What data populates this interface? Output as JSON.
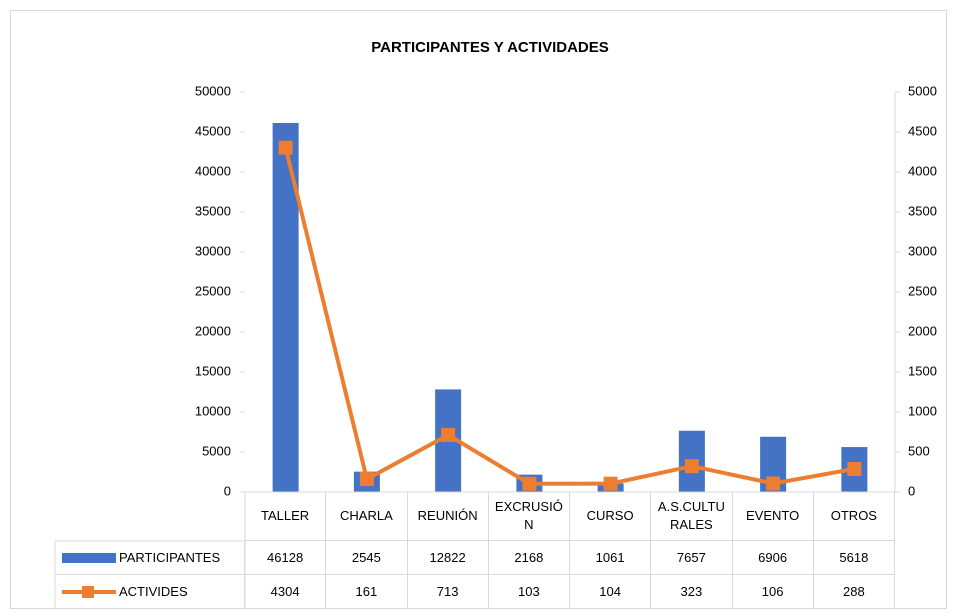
{
  "chart_data": {
    "type": "bar-line",
    "title": "PARTICIPANTES Y ACTIVIDADES",
    "categories": [
      "TALLER",
      "CHARLA",
      "REUNIÓN",
      "EXCRUSIÓN",
      "CURSO",
      "A.S.CULTURALES",
      "EVENTO",
      "OTROS"
    ],
    "series": [
      {
        "name": "PARTICIPANTES",
        "type": "bar",
        "color": "#4472c4",
        "values": [
          46128,
          2545,
          12822,
          2168,
          1061,
          7657,
          6906,
          5618
        ]
      },
      {
        "name": "ACTIVIDES",
        "type": "line",
        "axis": "y2",
        "color": "#ed7d31",
        "values": [
          4304,
          161,
          713,
          103,
          104,
          323,
          106,
          288
        ]
      }
    ],
    "ylim": [
      0,
      50000
    ],
    "yticks": [
      0,
      5000,
      10000,
      15000,
      20000,
      25000,
      30000,
      35000,
      40000,
      45000,
      50000
    ],
    "y2lim": [
      0,
      5000
    ],
    "y2ticks": [
      0,
      500,
      1000,
      1500,
      2000,
      2500,
      3000,
      3500,
      4000,
      4500,
      5000
    ],
    "grid": false,
    "data_table": true
  }
}
